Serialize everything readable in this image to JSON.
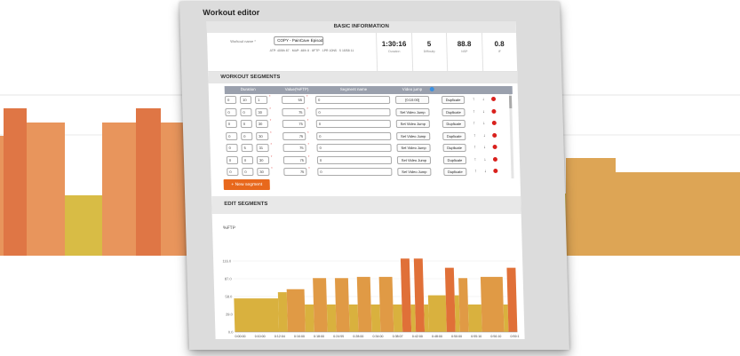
{
  "panel": {
    "title": "Workout editor"
  },
  "basic": {
    "header": "BASIC INFORMATION",
    "workout_name_label": "Workout name *",
    "workout_name_value": "COPY - PainCave Episode",
    "meta_text": "ATP: 40/8h 87 · MAP: 48/h 8 · 8FTP · 1PR 10N5 · 5 16/58 11",
    "stats": [
      {
        "value": "1:30:16",
        "label": "Duration"
      },
      {
        "value": "5",
        "label": "Difficulty"
      },
      {
        "value": "88.8",
        "label": "NSP"
      },
      {
        "value": "0.8",
        "label": "IF"
      }
    ]
  },
  "segments": {
    "header": "WORKOUT SEGMENTS",
    "columns": {
      "duration": "Duration",
      "value": "Value(%FTP)",
      "name": "Segment name",
      "video": "Video jump"
    },
    "rows": [
      {
        "h": "0",
        "m": "10",
        "s": "1",
        "value": "55",
        "name": "0",
        "video": "[0:10:00]",
        "action": "Duplicate"
      },
      {
        "h": "0",
        "m": "0",
        "s": "30",
        "value": "75",
        "name": "0",
        "video": "Set Video Jump",
        "action": "Duplicate"
      },
      {
        "h": "0",
        "m": "0",
        "s": "30",
        "value": "75",
        "name": "0",
        "video": "Set Video Jump",
        "action": "Duplicate"
      },
      {
        "h": "0",
        "m": "0",
        "s": "30",
        "value": "75",
        "name": "0",
        "video": "Set Video Jump",
        "action": "Duplicate"
      },
      {
        "h": "0",
        "m": "5",
        "s": "31",
        "value": "75",
        "name": "0",
        "video": "Set Video Jump",
        "action": "Duplicate"
      },
      {
        "h": "0",
        "m": "0",
        "s": "30",
        "value": "75",
        "name": "0",
        "video": "Set Video Jump",
        "action": "Duplicate"
      },
      {
        "h": "0",
        "m": "0",
        "s": "30",
        "value": "75",
        "name": "0",
        "video": "Set Video Jump",
        "action": "Duplicate"
      }
    ],
    "up_icon": "arrow-up-icon",
    "down_icon": "arrow-down-icon",
    "delete_icon": "delete-icon",
    "new_button": "+ New segment"
  },
  "edit": {
    "header": "EDIT SEGMENTS"
  },
  "chart_data": {
    "type": "bar",
    "ylabel": "%FTP",
    "xlabel": "time",
    "yticks": [
      "0.0",
      "29.0",
      "58.0",
      "87.0",
      "116.0"
    ],
    "ylim": [
      0,
      145
    ],
    "xticks": [
      "0:00:00",
      "0:10:00",
      "0:12:04",
      "0:16:00",
      "0:18:00",
      "0:24:55",
      "0:28:00",
      "0:34:00",
      "0:38:07",
      "0:42:00",
      "0:48:00",
      "0:50:00",
      "0:55:10",
      "0:56:10",
      "0:59:1"
    ],
    "segments": [
      {
        "start": 0,
        "end": 10,
        "value": 55
      },
      {
        "start": 10,
        "end": 12,
        "value": 65
      },
      {
        "start": 12,
        "end": 16,
        "value": 70
      },
      {
        "start": 16,
        "end": 18,
        "value": 45
      },
      {
        "start": 18,
        "end": 21,
        "value": 88
      },
      {
        "start": 21,
        "end": 23,
        "value": 45
      },
      {
        "start": 23,
        "end": 26,
        "value": 88
      },
      {
        "start": 26,
        "end": 28,
        "value": 45
      },
      {
        "start": 28,
        "end": 31,
        "value": 90
      },
      {
        "start": 31,
        "end": 33,
        "value": 45
      },
      {
        "start": 33,
        "end": 36,
        "value": 90
      },
      {
        "start": 36,
        "end": 38,
        "value": 45
      },
      {
        "start": 38,
        "end": 40,
        "value": 120
      },
      {
        "start": 40,
        "end": 41,
        "value": 45
      },
      {
        "start": 41,
        "end": 43,
        "value": 120
      },
      {
        "start": 43,
        "end": 44,
        "value": 45
      },
      {
        "start": 44,
        "end": 48,
        "value": 60
      },
      {
        "start": 48,
        "end": 50,
        "value": 105
      },
      {
        "start": 50,
        "end": 51,
        "value": 60
      },
      {
        "start": 51,
        "end": 53,
        "value": 88
      },
      {
        "start": 53,
        "end": 56,
        "value": 45
      },
      {
        "start": 56,
        "end": 61,
        "value": 90
      },
      {
        "start": 61,
        "end": 62,
        "value": 45
      },
      {
        "start": 62,
        "end": 64,
        "value": 105
      }
    ],
    "colors": {
      "low": "#d9b13e",
      "mid": "#e09a45",
      "high": "#e07038"
    }
  },
  "bg_chart": {
    "segments": [
      {
        "start": 0,
        "end": 4,
        "value": 135,
        "color": "#e8955c"
      },
      {
        "start": 4,
        "end": 30,
        "value": 166,
        "color": "#df7645"
      },
      {
        "start": 30,
        "end": 73,
        "value": 150,
        "color": "#e8955c"
      },
      {
        "start": 73,
        "end": 115,
        "value": 68,
        "color": "#d8bc45"
      },
      {
        "start": 115,
        "end": 153,
        "value": 150,
        "color": "#e8955c"
      },
      {
        "start": 153,
        "end": 181,
        "value": 166,
        "color": "#df7645"
      },
      {
        "start": 181,
        "end": 218,
        "value": 150,
        "color": "#e8955c"
      },
      {
        "start": 218,
        "end": 620,
        "value": 70,
        "color": "#d8bc45"
      },
      {
        "start": 620,
        "end": 637,
        "value": 70,
        "color": "#d8bc45"
      },
      {
        "start": 637,
        "end": 693,
        "value": 110,
        "color": "#dda555"
      },
      {
        "start": 693,
        "end": 833,
        "value": 94,
        "color": "#dda555"
      }
    ]
  }
}
